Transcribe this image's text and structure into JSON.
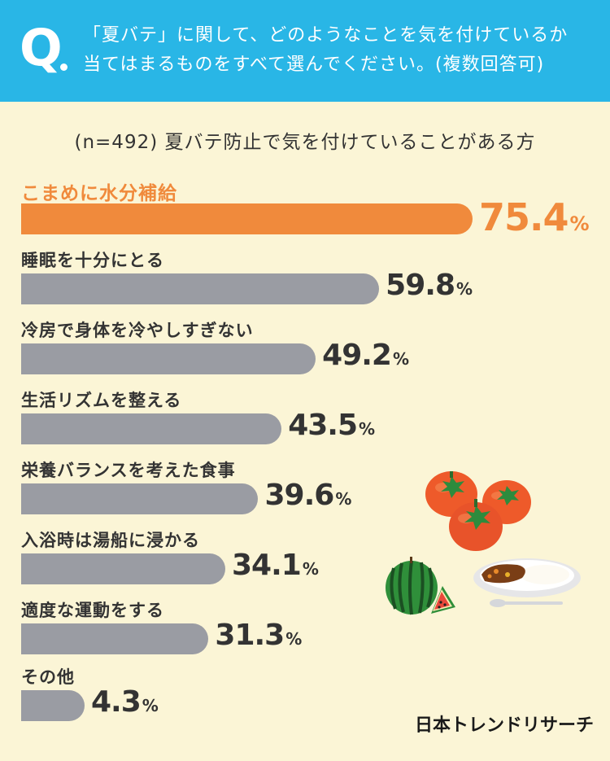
{
  "header": {
    "q_mark": "Q",
    "question_line1": "「夏バテ」に関して、どのようなことを気を付けているか",
    "question_line2": "当てはまるものをすべて選んでください。(複数回答可)"
  },
  "subtitle": "(n=492) 夏バテ防止で気を付けていることがある方",
  "chart_data": {
    "type": "bar",
    "orientation": "horizontal",
    "categories": [
      "こまめに水分補給",
      "睡眠を十分にとる",
      "冷房で身体を冷やしすぎない",
      "生活リズムを整える",
      "栄養バランスを考えた食事",
      "入浴時は湯船に浸かる",
      "適度な運動をする",
      "その他"
    ],
    "values": [
      75.4,
      59.8,
      49.2,
      43.5,
      39.6,
      34.1,
      31.3,
      4.3
    ],
    "value_labels": [
      "75.4",
      "59.8",
      "49.2",
      "43.5",
      "39.6",
      "34.1",
      "31.3",
      "4.3"
    ],
    "unit": "%",
    "highlight_index": 0,
    "colors": {
      "highlight": "#f08a3c",
      "default": "#9a9ca3",
      "header": "#29b6e6",
      "background": "#fbf5d6"
    }
  },
  "brand": "日本トレンドリサーチ",
  "illustrations": [
    "tomato-icon",
    "watermelon-icon",
    "curry-plate-icon",
    "spoon-icon"
  ]
}
